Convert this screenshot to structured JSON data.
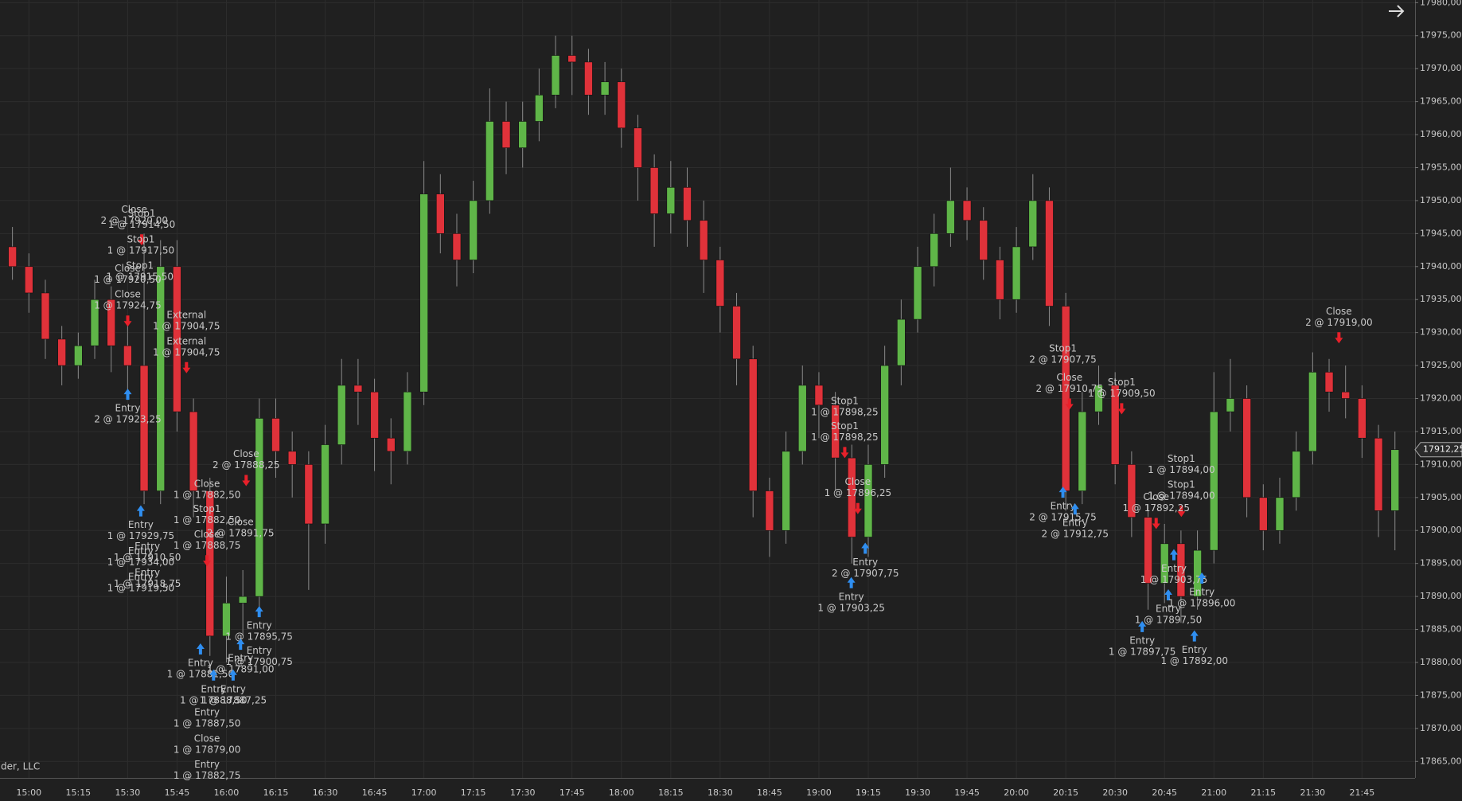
{
  "chart_data": {
    "type": "candlestick",
    "up_color": "#5fb548",
    "down_color": "#e0323a",
    "grid": true,
    "footer": "der, LLC",
    "categories": [
      null,
      "15:00",
      null,
      null,
      "15:15",
      null,
      null,
      "15:30",
      null,
      null,
      "15:45",
      null,
      null,
      "16:00",
      null,
      null,
      "16:15",
      null,
      null,
      "16:30",
      null,
      null,
      "16:45",
      null,
      null,
      "17:00",
      null,
      null,
      "17:15",
      null,
      null,
      "17:30",
      null,
      null,
      "17:45",
      null,
      null,
      "18:00",
      null,
      null,
      "18:15",
      null,
      null,
      "18:30",
      null,
      null,
      "18:45",
      null,
      null,
      "19:00",
      null,
      null,
      "19:15",
      null,
      null,
      "19:30",
      null,
      null,
      "19:45",
      null,
      null,
      "20:00",
      null,
      null,
      "20:15",
      null,
      null,
      "20:30",
      null,
      null,
      "20:45",
      null,
      null,
      "21:00",
      null,
      null,
      "21:15",
      null,
      null,
      "21:30",
      null,
      null,
      "21:45",
      null,
      null
    ],
    "open": [
      17943,
      17940,
      17936,
      17929,
      17925,
      17928,
      17935,
      17928,
      17925,
      17906,
      17940,
      17918,
      17906,
      17884,
      17889,
      17890,
      17917,
      17912,
      17910,
      17901,
      17913,
      17922,
      17921,
      17914,
      17912,
      17921,
      17951,
      17945,
      17941,
      17950,
      17962,
      17958,
      17962,
      17966,
      17972,
      17971,
      17966,
      17968,
      17961,
      17955,
      17948,
      17952,
      17947,
      17941,
      17934,
      17926,
      17906,
      17900,
      17912,
      17922,
      17919,
      17911,
      17899,
      17910,
      17925,
      17932,
      17940,
      17945,
      17950,
      17947,
      17941,
      17935,
      17943,
      17950,
      17934,
      17906,
      17918,
      17922,
      17910,
      17902,
      17892,
      17898,
      17890,
      17897,
      17918,
      17920,
      17905,
      17900,
      17905,
      17912,
      17924,
      17921,
      17920,
      17914,
      17903
    ],
    "high": [
      17946,
      17942,
      17938,
      17931,
      17930,
      17938,
      17937,
      17932,
      17945,
      17944,
      17944,
      17920,
      17908,
      17893,
      17894,
      17920,
      17920,
      17915,
      17912,
      17916,
      17926,
      17926,
      17923,
      17917,
      17924,
      17956,
      17954,
      17948,
      17953,
      17967,
      17965,
      17965,
      17970,
      17975,
      17975,
      17973,
      17971,
      17970,
      17963,
      17957,
      17956,
      17955,
      17950,
      17943,
      17936,
      17928,
      17908,
      17915,
      17925,
      17924,
      17921,
      17913,
      17913,
      17928,
      17935,
      17943,
      17948,
      17955,
      17952,
      17949,
      17943,
      17946,
      17954,
      17952,
      17936,
      17921,
      17925,
      17924,
      17912,
      17904,
      17901,
      17900,
      17900,
      17924,
      17926,
      17922,
      17907,
      17908,
      17915,
      17927,
      17926,
      17925,
      17922,
      17916,
      17915
    ],
    "low": [
      17938,
      17933,
      17926,
      17922,
      17923,
      17926,
      17924,
      17920,
      17904,
      17904,
      17915,
      17902,
      17881,
      17880,
      17884,
      17888,
      17908,
      17905,
      17891,
      17898,
      17910,
      17916,
      17909,
      17907,
      17910,
      17919,
      17942,
      17937,
      17939,
      17948,
      17954,
      17955,
      17959,
      17964,
      17966,
      17963,
      17963,
      17958,
      17950,
      17943,
      17945,
      17943,
      17936,
      17930,
      17922,
      17902,
      17896,
      17898,
      17910,
      17914,
      17906,
      17895,
      17896,
      17908,
      17922,
      17930,
      17937,
      17943,
      17944,
      17938,
      17932,
      17933,
      17941,
      17931,
      17903,
      17904,
      17916,
      17907,
      17899,
      17888,
      17889,
      17886,
      17888,
      17895,
      17915,
      17902,
      17897,
      17898,
      17903,
      17910,
      17918,
      17917,
      17911,
      17899,
      17897
    ],
    "close": [
      17940,
      17936,
      17929,
      17925,
      17928,
      17935,
      17928,
      17925,
      17906,
      17940,
      17918,
      17906,
      17884,
      17889,
      17890,
      17917,
      17912,
      17910,
      17901,
      17913,
      17922,
      17921,
      17914,
      17912,
      17921,
      17951,
      17945,
      17941,
      17950,
      17962,
      17958,
      17962,
      17966,
      17972,
      17971,
      17966,
      17968,
      17961,
      17955,
      17948,
      17952,
      17947,
      17941,
      17934,
      17926,
      17906,
      17900,
      17912,
      17922,
      17919,
      17911,
      17899,
      17910,
      17925,
      17932,
      17940,
      17945,
      17950,
      17947,
      17941,
      17935,
      17943,
      17950,
      17934,
      17906,
      17918,
      17922,
      17910,
      17902,
      17892,
      17898,
      17890,
      17897,
      17918,
      17920,
      17905,
      17900,
      17905,
      17912,
      17924,
      17921,
      17920,
      17914,
      17903,
      17912.25
    ],
    "ylim": [
      17862.5,
      17980.4
    ],
    "yticks": [
      {
        "value": 17865,
        "label": "17865,00"
      },
      {
        "value": 17870,
        "label": "17870,00"
      },
      {
        "value": 17875,
        "label": "17875,00"
      },
      {
        "value": 17880,
        "label": "17880,00"
      },
      {
        "value": 17885,
        "label": "17885,00"
      },
      {
        "value": 17890,
        "label": "17890,00"
      },
      {
        "value": 17895,
        "label": "17895,00"
      },
      {
        "value": 17900,
        "label": "17900,00"
      },
      {
        "value": 17905,
        "label": "17905,00"
      },
      {
        "value": 17910,
        "label": "17910,00"
      },
      {
        "value": 17915,
        "label": "17915,00"
      },
      {
        "value": 17920,
        "label": "17920,00"
      },
      {
        "value": 17925,
        "label": "17925,00"
      },
      {
        "value": 17930,
        "label": "17930,00"
      },
      {
        "value": 17935,
        "label": "17935,00"
      },
      {
        "value": 17940,
        "label": "17940,00"
      },
      {
        "value": 17945,
        "label": "17945,00"
      },
      {
        "value": 17950,
        "label": "17950,00"
      },
      {
        "value": 17955,
        "label": "17955,00"
      },
      {
        "value": 17960,
        "label": "17960,00"
      },
      {
        "value": 17965,
        "label": "17965,00"
      },
      {
        "value": 17970,
        "label": "17970,00"
      },
      {
        "value": 17975,
        "label": "17975,00"
      },
      {
        "value": 17980,
        "label": "17980,00"
      }
    ],
    "last_price": {
      "value": 17912.25,
      "label": "17912,25"
    },
    "annotations": [
      {
        "title": "Close",
        "text": "2 @ 17919,00"
      },
      {
        "title": "Stop1",
        "text": "2 @ 17907,75"
      },
      {
        "title": "Close",
        "text": "2 @ 17910,75"
      },
      {
        "title": "Stop1",
        "text": "1 @ 17909,50"
      },
      {
        "title": "Entry",
        "text": "2 @ 17915,75"
      },
      {
        "title": "Entry",
        "text": "2 @ 17912,75"
      },
      {
        "title": "Stop1",
        "text": "1 @ 17894,00"
      },
      {
        "title": "Stop1",
        "text": "1 @ 17894,00"
      },
      {
        "title": "Close",
        "text": "1 @ 17892,25"
      },
      {
        "title": "Entry",
        "text": "1 @ 17903,75"
      },
      {
        "title": "Entry",
        "text": "1 @ 17897,50"
      },
      {
        "title": "Entry",
        "text": "1 @ 17896,00"
      },
      {
        "title": "Entry",
        "text": "1 @ 17897,75"
      },
      {
        "title": "Entry",
        "text": "1 @ 17892,00"
      },
      {
        "title": "Stop1",
        "text": "1 @ 17898,25"
      },
      {
        "title": "Stop1",
        "text": "1 @ 17898,25"
      },
      {
        "title": "Close",
        "text": "1 @ 17896,25"
      },
      {
        "title": "Entry",
        "text": "2 @ 17907,75"
      },
      {
        "title": "Entry",
        "text": "1 @ 17903,25"
      },
      {
        "title": "Close",
        "text": "2 @ 17888,25"
      },
      {
        "title": "Close",
        "text": "1 @ 17882,50"
      },
      {
        "title": "Stop1",
        "text": "1 @ 17882,50"
      },
      {
        "title": "Close",
        "text": "1 @ 17888,75"
      },
      {
        "title": "Close",
        "text": "2 @ 17891,75"
      },
      {
        "title": "Entry",
        "text": "1 @ 17895,75"
      },
      {
        "title": "Entry",
        "text": "1 @ 17900,75"
      },
      {
        "title": "Entry",
        "text": "1 @ 17891,00"
      },
      {
        "title": "Entry",
        "text": "1 @ 17881,50"
      },
      {
        "title": "Entry",
        "text": "1 @ 17888,50"
      },
      {
        "title": "Entry",
        "text": "1 @ 17887,25"
      },
      {
        "title": "Entry",
        "text": "1 @ 17887,50"
      },
      {
        "title": "Close",
        "text": "1 @ 17879,00"
      },
      {
        "title": "Entry",
        "text": "1 @ 17882,75"
      },
      {
        "title": "External",
        "text": "1 @ 17904,75"
      },
      {
        "title": "External",
        "text": "1 @ 17904,75"
      },
      {
        "title": "Close",
        "text": "2 @ 17920,00"
      },
      {
        "title": "Stop1",
        "text": "1 @ 17914,50"
      },
      {
        "title": "Stop1",
        "text": "1 @ 17917,50"
      },
      {
        "title": "Close",
        "text": "1 @ 17920,50"
      },
      {
        "title": "Stop1",
        "text": "1 @ 17915,50"
      },
      {
        "title": "Close",
        "text": "1 @ 17924,75"
      },
      {
        "title": "Entry",
        "text": "2 @ 17923,25"
      },
      {
        "title": "Entry",
        "text": "1 @ 17929,75"
      },
      {
        "title": "Entry",
        "text": "1 @ 17910,50"
      },
      {
        "title": "Entry",
        "text": "1 @ 17934,00"
      },
      {
        "title": "Entry",
        "text": "1 @ 17918,75"
      },
      {
        "title": "Entry",
        "text": "1 @ 17919,50"
      }
    ]
  }
}
